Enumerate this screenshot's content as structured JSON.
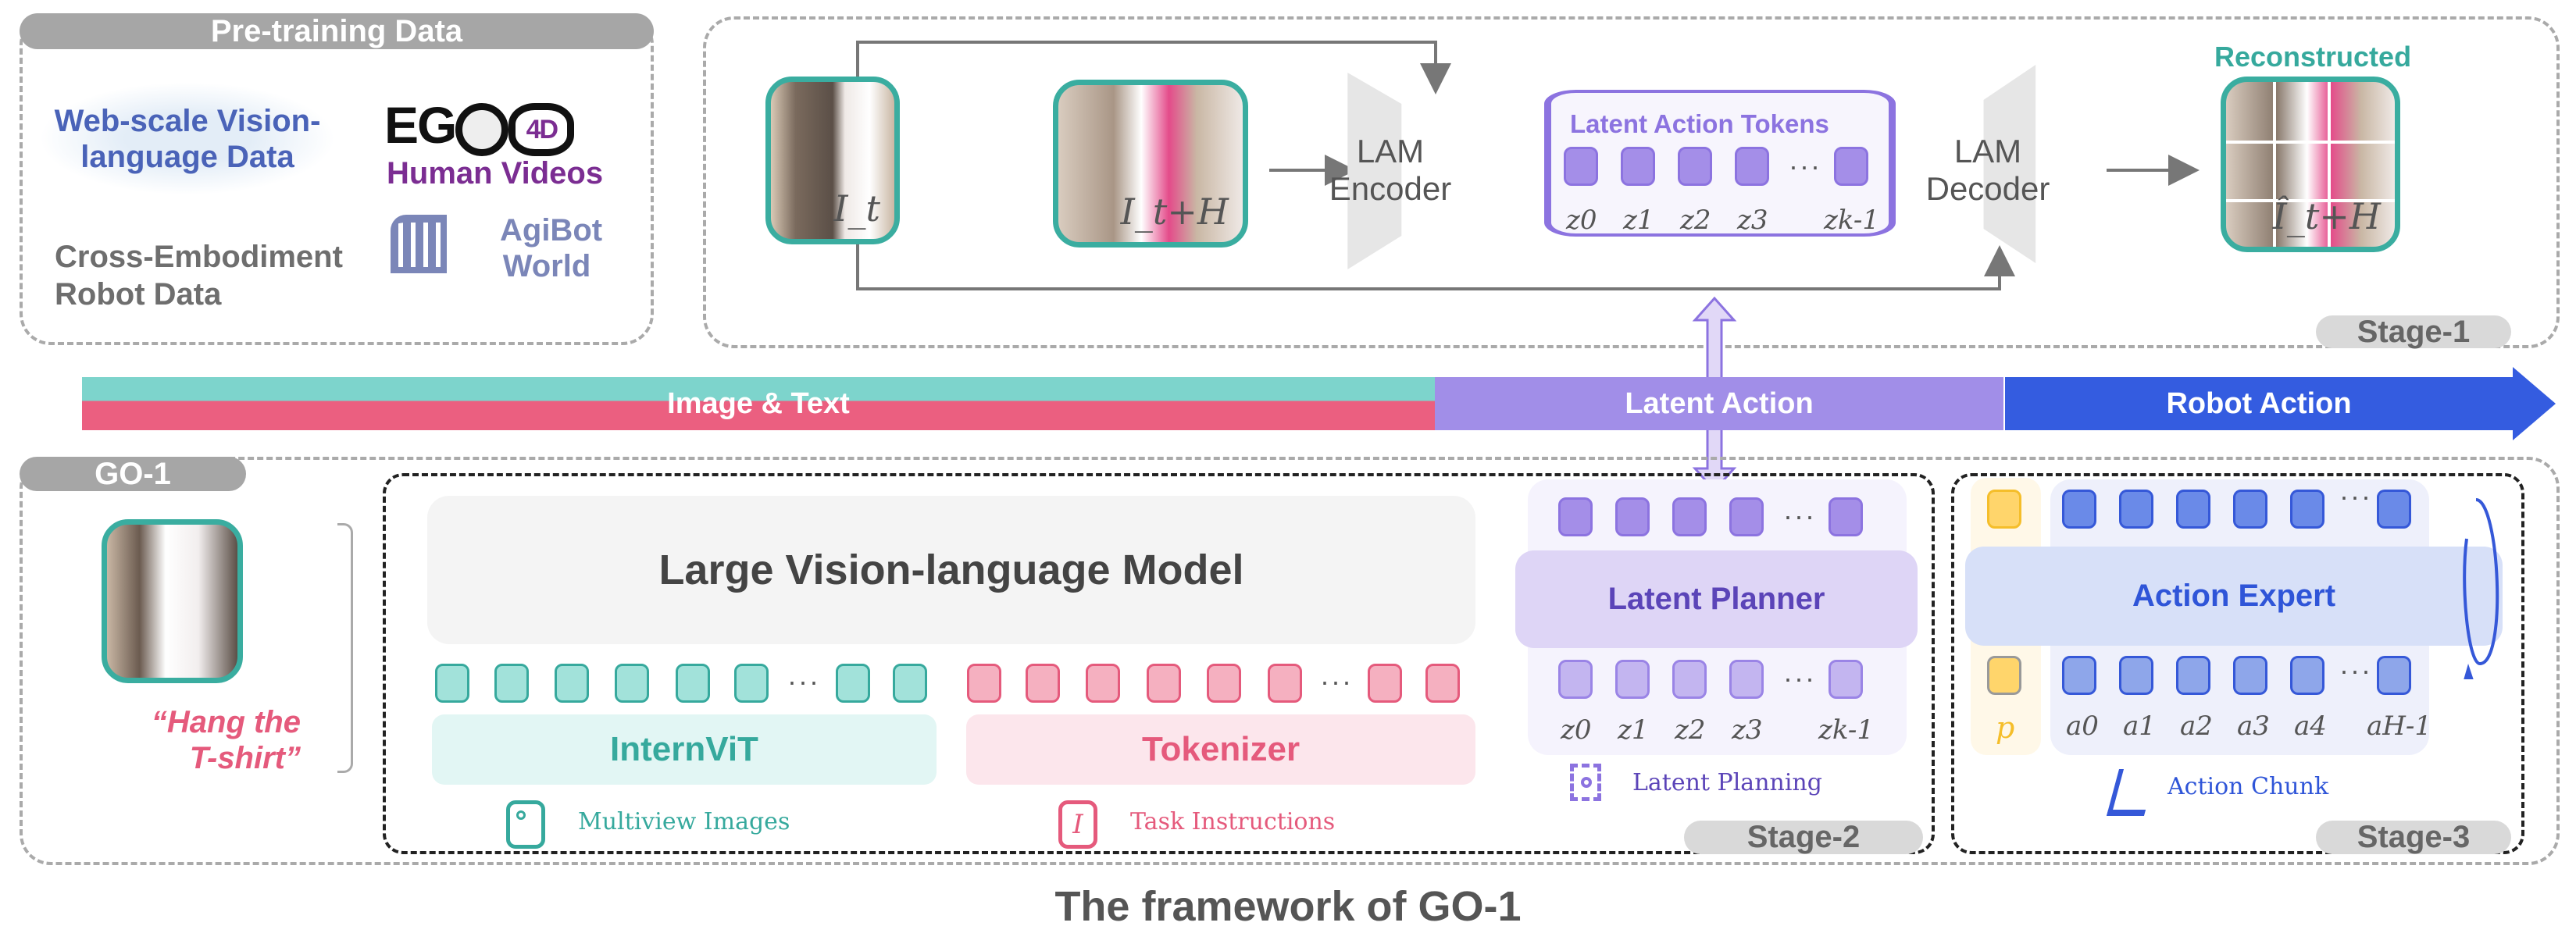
{
  "pretraining": {
    "title": "Pre-training Data",
    "items": [
      {
        "label": "Web-scale Vision-language Data",
        "color": "#4a63b8"
      },
      {
        "label": "Human Videos",
        "logo": "EGO4D",
        "color": "#7b2d92"
      },
      {
        "label": "Cross-Embodiment Robot Data",
        "color": "#6e6e6e"
      },
      {
        "label": "AgiBot World",
        "icon": "colosseum-icon",
        "color": "#7b86b8"
      }
    ]
  },
  "stage1": {
    "frame_t": "I_t",
    "frame_tH": "I_t+H",
    "encoder": "LAM Encoder",
    "decoder": "LAM Decoder",
    "tokens_title": "Latent Action Tokens",
    "token_labels": [
      "z0",
      "z1",
      "z2",
      "z3",
      "zk-1"
    ],
    "reconstructed": "Reconstructed",
    "recon_frame": "Î_t+H",
    "stage": "Stage-1"
  },
  "band": {
    "image_text": "Image & Text",
    "latent_action": "Latent Action",
    "robot_action": "Robot Action",
    "colors": {
      "teal": "#7dd4cc",
      "pink": "#eb5f80",
      "purple": "#a18ee8",
      "blue": "#345ce0"
    }
  },
  "go1": {
    "title": "GO-1",
    "instruction": "“Hang the T-shirt”",
    "vlm": "Large Vision-language Model",
    "vit": "InternViT",
    "tokenizer": "Tokenizer",
    "multiview": "Multiview Images",
    "task": "Task Instructions",
    "planner": "Latent Planner",
    "planning": "Latent Planning",
    "planner_labels": [
      "z0",
      "z1",
      "z2",
      "z3",
      "zk-1"
    ],
    "stage2": "Stage-2",
    "expert": "Action Expert",
    "chunk": "Action Chunk",
    "p": "p",
    "action_labels": [
      "a0",
      "a1",
      "a2",
      "a3",
      "a4",
      "aH-1"
    ],
    "stage3": "Stage-3"
  },
  "caption": "The framework of GO-1"
}
